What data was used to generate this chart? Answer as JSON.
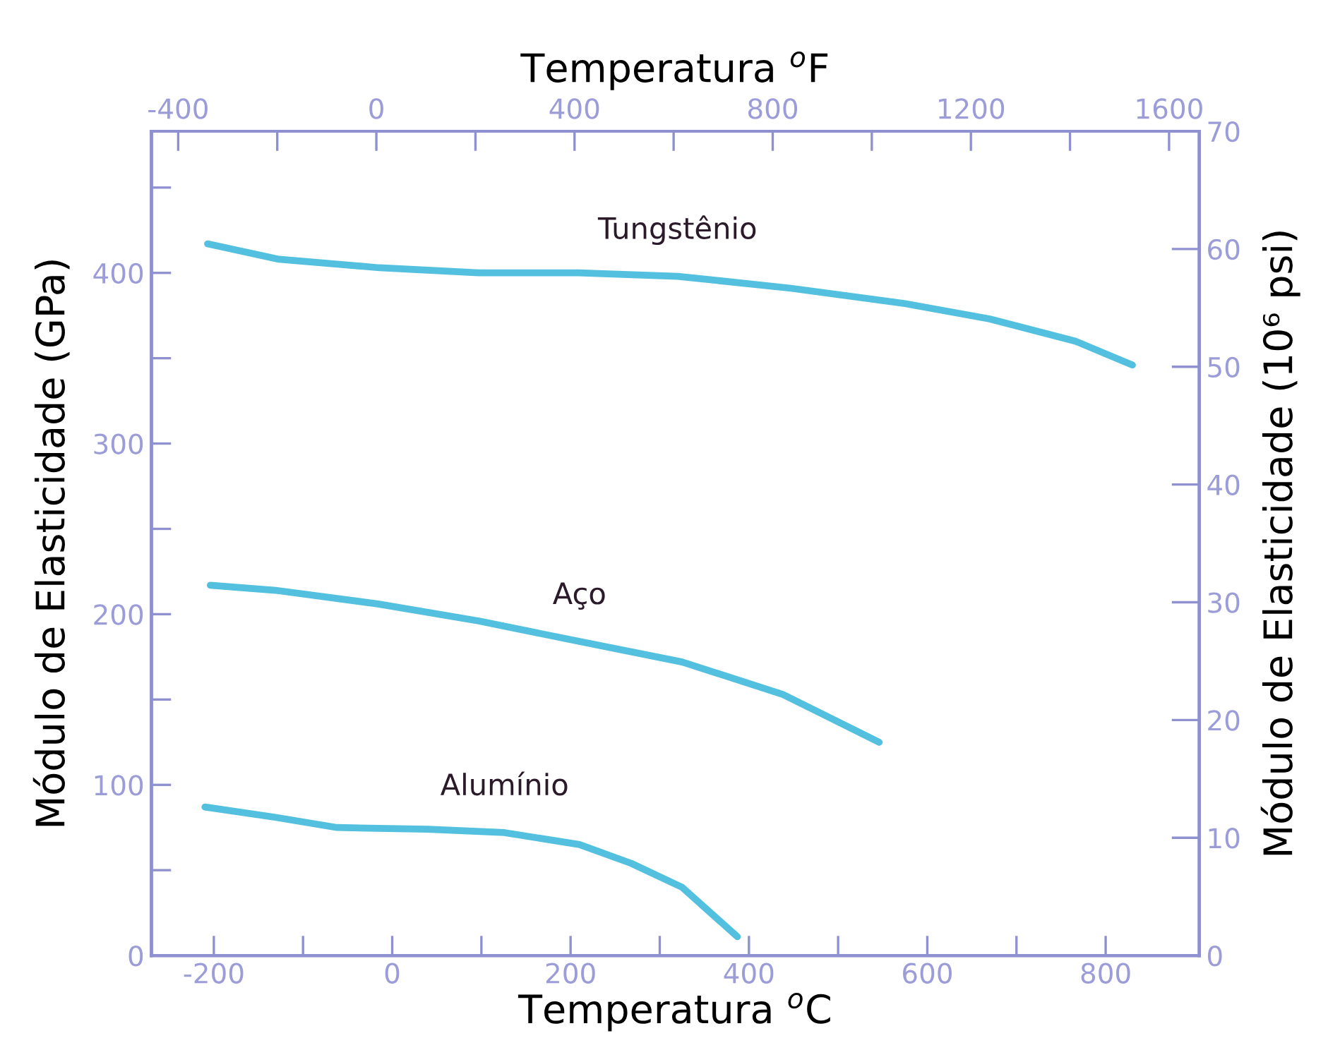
{
  "chart_data": {
    "type": "line",
    "xlabel": "Temperatura $^{o}$C",
    "ylabel": "Módulo de Elasticidade (GPa)",
    "x2label": "Temperatura $^{o}$F",
    "y2label": "Módulo de Elasticidade (10⁶ psi)",
    "xlim": [
      -270,
      905
    ],
    "xticks": [
      -200,
      {
        "value": -100,
        "label": null
      },
      0,
      {
        "value": 100,
        "label": null
      },
      200,
      {
        "value": 300,
        "label": null
      },
      400,
      {
        "value": 500,
        "label": null
      },
      600,
      {
        "value": 700,
        "label": null
      },
      800
    ],
    "x2lim": [
      -454,
      1661
    ],
    "x2ticks": [
      {
        "value": -400,
        "label": "-400"
      },
      {
        "value": -200,
        "label": null
      },
      0,
      {
        "value": 200,
        "label": null
      },
      400,
      {
        "value": 600,
        "label": null
      },
      800,
      {
        "value": 1000,
        "label": null
      },
      1200,
      {
        "value": 1400,
        "label": null
      },
      1600
    ],
    "ylim": [
      0,
      483
    ],
    "yticks": [
      0,
      {
        "value": 50,
        "label": null
      },
      100,
      {
        "value": 150,
        "label": null
      },
      200,
      {
        "value": 250,
        "label": null
      },
      300,
      {
        "value": 350,
        "label": null
      },
      400,
      {
        "value": 450,
        "label": null
      }
    ],
    "y2lim": [
      0,
      70
    ],
    "y2ticks": [
      0,
      10,
      20,
      30,
      40,
      50,
      60,
      70
    ],
    "grid": false,
    "legend": false,
    "marker": "none",
    "line_style": "solid",
    "series": [
      {
        "name": "Tungstênio",
        "color": "#52c0de",
        "x": [
          -207,
          -127,
          -14,
          97,
          209,
          320,
          447,
          575,
          670,
          766,
          830
        ],
        "values": [
          417,
          408,
          403,
          400,
          400,
          398,
          391,
          382,
          373,
          360,
          346
        ]
      },
      {
        "name": "Aço",
        "color": "#52c0de",
        "x": [
          -204,
          -131,
          -16,
          97,
          210,
          325,
          438,
          546
        ],
        "values": [
          217,
          214,
          206,
          196,
          184,
          172,
          153,
          125
        ]
      },
      {
        "name": "Alumínio",
        "color": "#52c0de",
        "x": [
          -210,
          -131,
          -62,
          40,
          126,
          210,
          268,
          325,
          387
        ],
        "values": [
          87,
          81,
          75,
          74,
          72,
          65,
          54,
          40,
          11
        ]
      }
    ]
  }
}
